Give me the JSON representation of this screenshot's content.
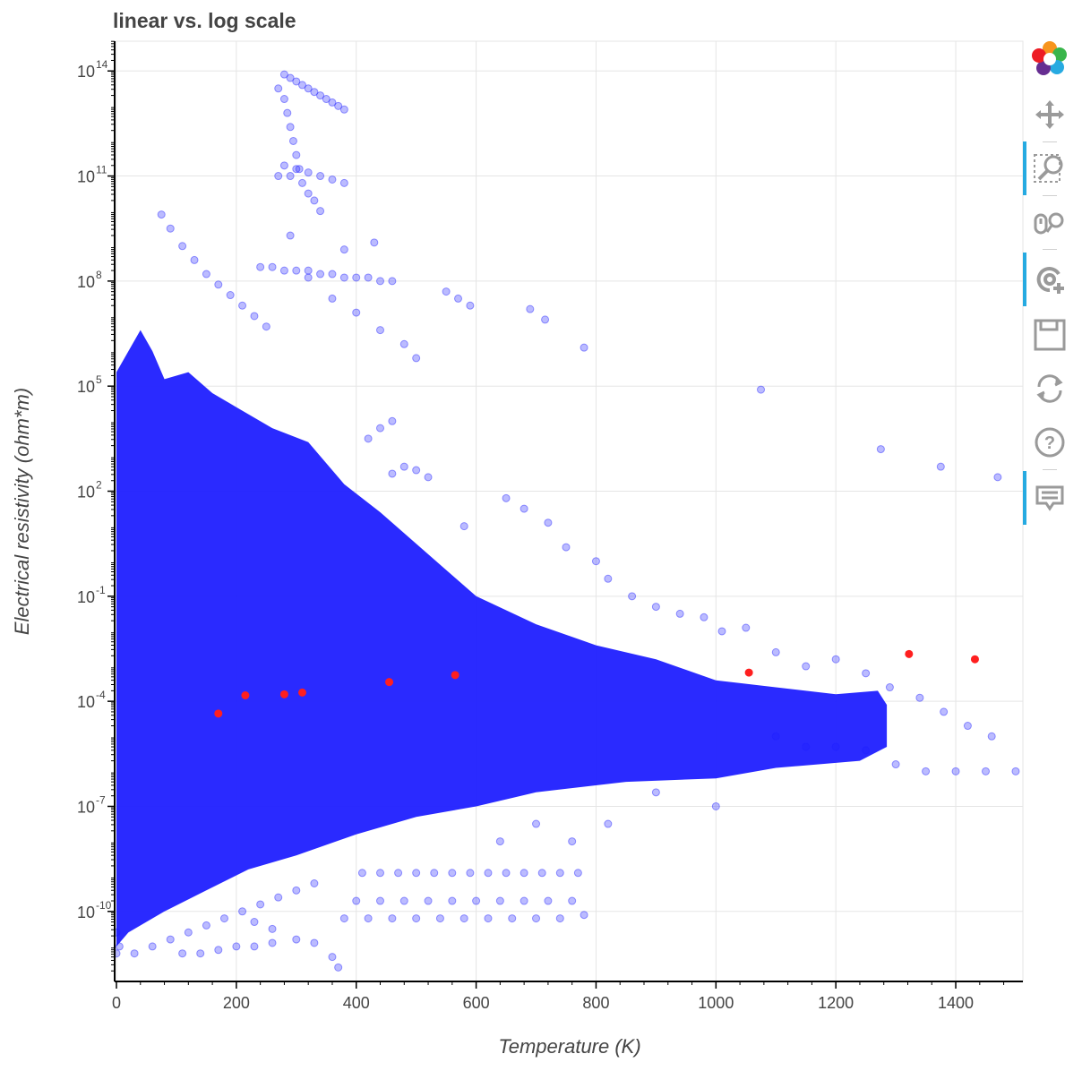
{
  "chart_data": {
    "type": "scatter",
    "title": "linear vs. log scale",
    "xlabel": "Temperature (K)",
    "ylabel": "Electrical resistivity (ohm*m)",
    "xlim": [
      -3,
      1512
    ],
    "ylim_log10": [
      -12.0,
      14.85
    ],
    "y_scale": "log",
    "grid": true,
    "x_ticks": [
      0,
      200,
      400,
      600,
      800,
      1000,
      1200,
      1400
    ],
    "y_ticks_log10": [
      -10,
      -7,
      -4,
      -1,
      2,
      5,
      8,
      11,
      14
    ],
    "series": [
      {
        "color": "#1f1fff",
        "style": "translucent circles (dense cloud)",
        "points": [
          [
            280,
            13.9
          ],
          [
            290,
            13.8
          ],
          [
            300,
            13.7
          ],
          [
            310,
            13.6
          ],
          [
            320,
            13.5
          ],
          [
            330,
            13.4
          ],
          [
            340,
            13.3
          ],
          [
            350,
            13.2
          ],
          [
            360,
            13.1
          ],
          [
            370,
            13.0
          ],
          [
            380,
            12.9
          ],
          [
            270,
            13.5
          ],
          [
            280,
            13.2
          ],
          [
            285,
            12.8
          ],
          [
            290,
            12.4
          ],
          [
            295,
            12.0
          ],
          [
            300,
            11.6
          ],
          [
            305,
            11.2
          ],
          [
            310,
            10.8
          ],
          [
            320,
            10.5
          ],
          [
            330,
            10.3
          ],
          [
            340,
            10.0
          ],
          [
            280,
            11.3
          ],
          [
            300,
            11.2
          ],
          [
            320,
            11.1
          ],
          [
            340,
            11.0
          ],
          [
            360,
            10.9
          ],
          [
            380,
            10.8
          ],
          [
            270,
            11.0
          ],
          [
            290,
            11.0
          ],
          [
            75,
            9.9
          ],
          [
            90,
            9.5
          ],
          [
            110,
            9.0
          ],
          [
            130,
            8.6
          ],
          [
            150,
            8.2
          ],
          [
            170,
            7.9
          ],
          [
            190,
            7.6
          ],
          [
            210,
            7.3
          ],
          [
            230,
            7.0
          ],
          [
            250,
            6.7
          ],
          [
            240,
            8.4
          ],
          [
            260,
            8.4
          ],
          [
            280,
            8.3
          ],
          [
            300,
            8.3
          ],
          [
            320,
            8.3
          ],
          [
            340,
            8.2
          ],
          [
            360,
            8.2
          ],
          [
            380,
            8.1
          ],
          [
            400,
            8.1
          ],
          [
            420,
            8.1
          ],
          [
            440,
            8.0
          ],
          [
            460,
            8.0
          ],
          [
            320,
            8.1
          ],
          [
            360,
            7.5
          ],
          [
            400,
            7.1
          ],
          [
            440,
            6.6
          ],
          [
            480,
            6.2
          ],
          [
            500,
            5.8
          ],
          [
            430,
            9.1
          ],
          [
            290,
            9.3
          ],
          [
            380,
            8.9
          ],
          [
            550,
            7.7
          ],
          [
            570,
            7.5
          ],
          [
            590,
            7.3
          ],
          [
            690,
            7.2
          ],
          [
            715,
            6.9
          ],
          [
            780,
            6.1
          ],
          [
            1075,
            4.9
          ],
          [
            1275,
            3.2
          ],
          [
            1375,
            2.7
          ],
          [
            1470,
            2.4
          ],
          [
            460,
            2.5
          ],
          [
            480,
            2.7
          ],
          [
            500,
            2.6
          ],
          [
            520,
            2.4
          ],
          [
            420,
            3.5
          ],
          [
            440,
            3.8
          ],
          [
            460,
            4.0
          ],
          [
            580,
            1.0
          ],
          [
            650,
            1.8
          ],
          [
            680,
            1.5
          ],
          [
            720,
            1.1
          ],
          [
            750,
            0.4
          ],
          [
            800,
            0.0
          ],
          [
            820,
            -0.5
          ],
          [
            860,
            -1.0
          ],
          [
            900,
            -1.3
          ],
          [
            940,
            -1.5
          ],
          [
            980,
            -1.6
          ],
          [
            1010,
            -2.0
          ],
          [
            1050,
            -1.9
          ],
          [
            1100,
            -2.6
          ],
          [
            1150,
            -3.0
          ],
          [
            1200,
            -2.8
          ],
          [
            1250,
            -3.2
          ],
          [
            1290,
            -3.6
          ],
          [
            1340,
            -3.9
          ],
          [
            1380,
            -4.3
          ],
          [
            1420,
            -4.7
          ],
          [
            1460,
            -5.0
          ],
          [
            1100,
            -5.0
          ],
          [
            1150,
            -5.3
          ],
          [
            1200,
            -5.3
          ],
          [
            1250,
            -5.4
          ],
          [
            1300,
            -5.8
          ],
          [
            1350,
            -6.0
          ],
          [
            1400,
            -6.0
          ],
          [
            1450,
            -6.0
          ],
          [
            1500,
            -6.0
          ],
          [
            410,
            -8.9
          ],
          [
            440,
            -8.9
          ],
          [
            470,
            -8.9
          ],
          [
            500,
            -8.9
          ],
          [
            530,
            -8.9
          ],
          [
            560,
            -8.9
          ],
          [
            590,
            -8.9
          ],
          [
            620,
            -8.9
          ],
          [
            650,
            -8.9
          ],
          [
            680,
            -8.9
          ],
          [
            710,
            -8.9
          ],
          [
            740,
            -8.9
          ],
          [
            770,
            -8.9
          ],
          [
            400,
            -9.7
          ],
          [
            440,
            -9.7
          ],
          [
            480,
            -9.7
          ],
          [
            520,
            -9.7
          ],
          [
            560,
            -9.7
          ],
          [
            600,
            -9.7
          ],
          [
            640,
            -9.7
          ],
          [
            680,
            -9.7
          ],
          [
            720,
            -9.7
          ],
          [
            760,
            -9.7
          ],
          [
            380,
            -10.2
          ],
          [
            420,
            -10.2
          ],
          [
            460,
            -10.2
          ],
          [
            500,
            -10.2
          ],
          [
            540,
            -10.2
          ],
          [
            580,
            -10.2
          ],
          [
            620,
            -10.2
          ],
          [
            660,
            -10.2
          ],
          [
            700,
            -10.2
          ],
          [
            740,
            -10.2
          ],
          [
            780,
            -10.1
          ],
          [
            30,
            -11.2
          ],
          [
            60,
            -11.0
          ],
          [
            90,
            -10.8
          ],
          [
            120,
            -10.6
          ],
          [
            150,
            -10.4
          ],
          [
            180,
            -10.2
          ],
          [
            210,
            -10.0
          ],
          [
            240,
            -9.8
          ],
          [
            270,
            -9.6
          ],
          [
            300,
            -9.4
          ],
          [
            330,
            -9.2
          ],
          [
            110,
            -11.2
          ],
          [
            140,
            -11.2
          ],
          [
            170,
            -11.1
          ],
          [
            200,
            -11.0
          ],
          [
            230,
            -11.0
          ],
          [
            260,
            -10.9
          ],
          [
            300,
            -10.8
          ],
          [
            330,
            -10.9
          ],
          [
            360,
            -11.3
          ],
          [
            370,
            -11.6
          ],
          [
            0,
            -11.2
          ],
          [
            5,
            -11.0
          ],
          [
            0,
            -10.6
          ],
          [
            230,
            -10.3
          ],
          [
            260,
            -10.5
          ],
          [
            640,
            -8.0
          ],
          [
            700,
            -7.5
          ],
          [
            760,
            -8.0
          ],
          [
            820,
            -7.5
          ],
          [
            900,
            -6.6
          ],
          [
            1000,
            -7.0
          ]
        ]
      },
      {
        "color": "#ff1f1f",
        "style": "solid circles",
        "points": [
          [
            170,
            -4.35
          ],
          [
            215,
            -3.83
          ],
          [
            280,
            -3.8
          ],
          [
            310,
            -3.75
          ],
          [
            455,
            -3.45
          ],
          [
            565,
            -3.25
          ],
          [
            1055,
            -3.18
          ],
          [
            1322,
            -2.65
          ],
          [
            1432,
            -2.8
          ]
        ]
      }
    ]
  },
  "toolbar": {
    "items": [
      {
        "name": "bokeh-logo-icon",
        "active": false
      },
      {
        "name": "pan-icon",
        "active": false
      },
      {
        "name": "box-zoom-icon",
        "active": true
      },
      {
        "name": "wheel-zoom-icon",
        "active": false
      },
      {
        "name": "tap-icon",
        "active": true
      },
      {
        "name": "save-icon",
        "active": false
      },
      {
        "name": "reset-icon",
        "active": false
      },
      {
        "name": "help-icon",
        "active": false
      },
      {
        "name": "hover-icon",
        "active": true
      }
    ]
  }
}
